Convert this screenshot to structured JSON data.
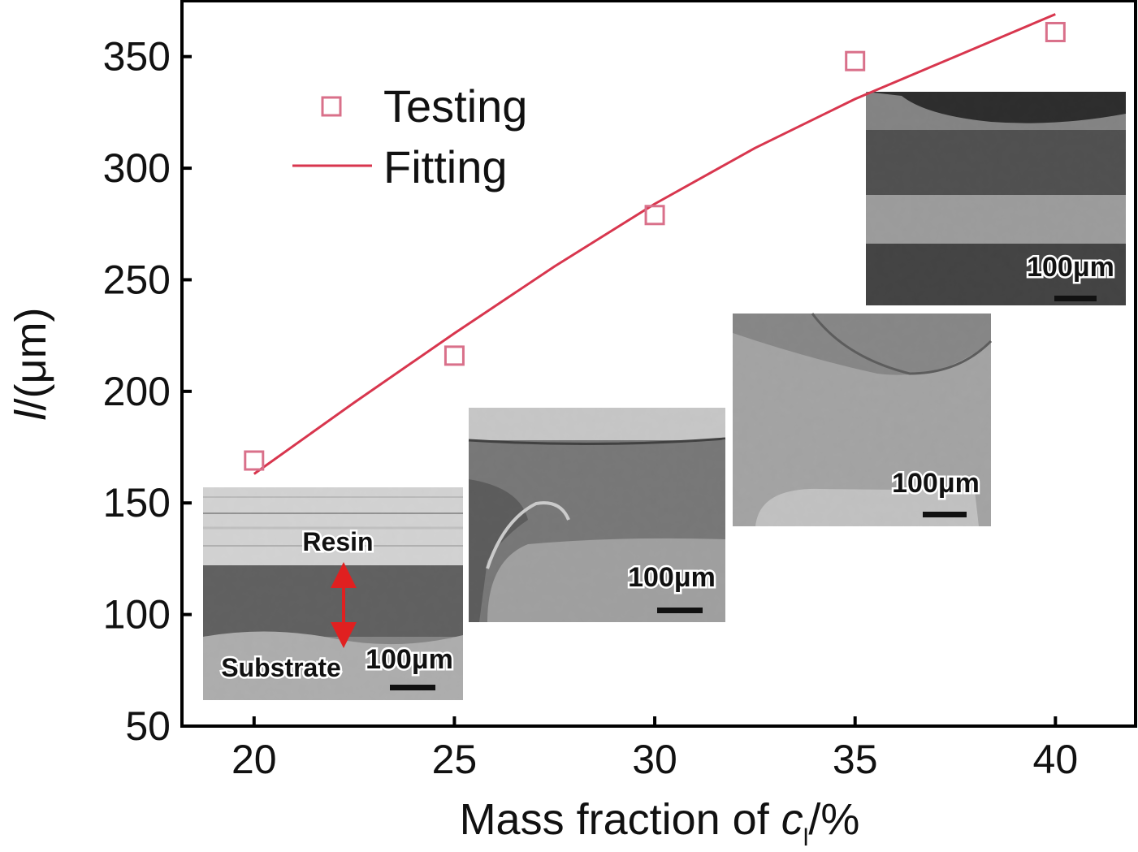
{
  "chart_data": {
    "type": "scatter",
    "title": "",
    "xlabel_prefix": "Mass fraction of ",
    "xlabel_var": "c",
    "xlabel_sub": "l",
    "xlabel_suffix": "/%",
    "ylabel_var": "l",
    "ylabel_suffix": "/(μm)",
    "xlim": [
      18.2,
      42.0
    ],
    "ylim": [
      50,
      375
    ],
    "xticks": [
      20,
      25,
      30,
      35,
      40
    ],
    "yticks": [
      50,
      100,
      150,
      200,
      250,
      300,
      350
    ],
    "grid": false,
    "legend_position": "top-left",
    "series": [
      {
        "name": "Testing",
        "kind": "markers",
        "marker": "open-square",
        "color": "#d9708a",
        "x": [
          20,
          25,
          30,
          35,
          40
        ],
        "y": [
          169,
          216,
          279,
          348,
          361
        ]
      },
      {
        "name": "Fitting",
        "kind": "line",
        "color": "#d8364e",
        "x": [
          20,
          22.5,
          25,
          27.5,
          30,
          32.5,
          35,
          37.5,
          40
        ],
        "y": [
          163,
          195,
          226,
          256,
          284,
          309,
          331,
          350,
          369
        ]
      }
    ],
    "insets": [
      {
        "name": "sem-20",
        "scale_bar_label": "100μm",
        "annotations": [
          "Resin",
          "Substrate"
        ],
        "at_x": 20
      },
      {
        "name": "sem-25",
        "scale_bar_label": "100μm",
        "at_x": 25
      },
      {
        "name": "sem-30",
        "scale_bar_label": "100μm",
        "at_x": 30
      },
      {
        "name": "sem-40",
        "scale_bar_label": "100μm",
        "at_x": 40
      }
    ],
    "colors": {
      "axis": "#000000",
      "marker": "#d9708a",
      "line": "#d8364e",
      "arrow": "#e02020"
    }
  }
}
